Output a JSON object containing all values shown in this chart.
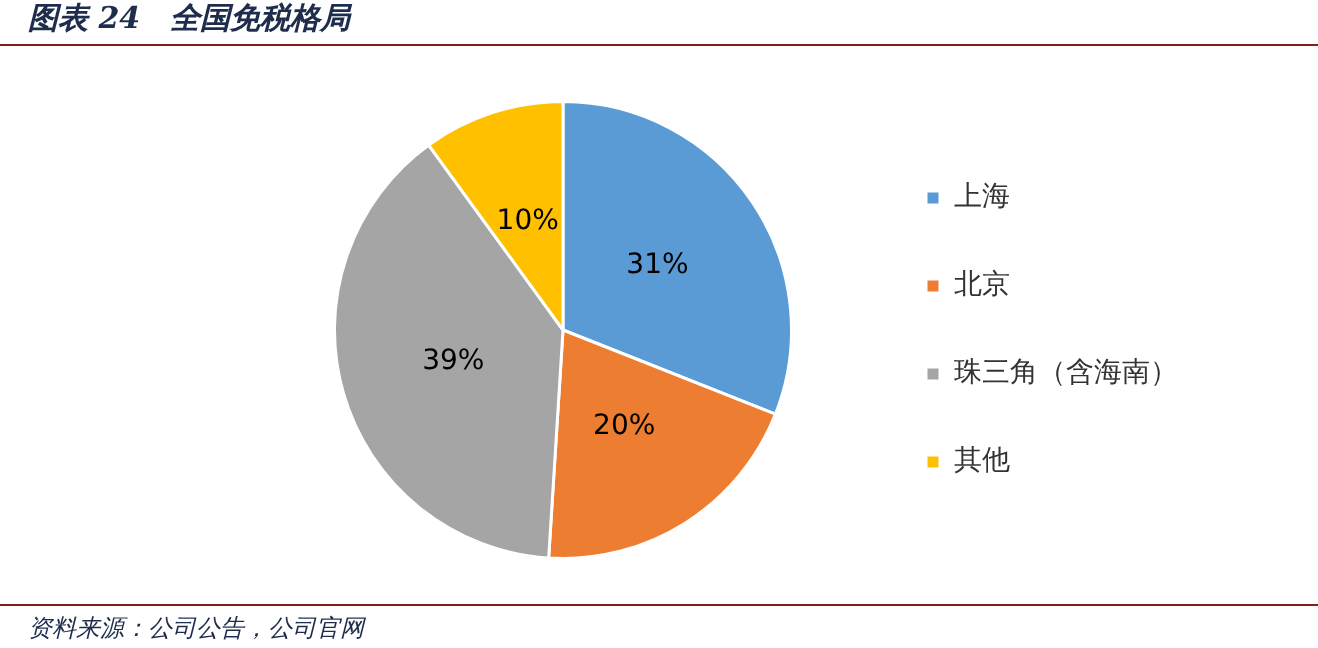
{
  "chart_data": {
    "type": "pie",
    "title": "图表 24　全国免税格局",
    "categories": [
      "上海",
      "北京",
      "珠三角（含海南）",
      "其他"
    ],
    "values": [
      31,
      20,
      39,
      10
    ],
    "value_labels": [
      "31%",
      "20%",
      "39%",
      "10%"
    ],
    "colors": [
      "#5b9bd5",
      "#ed7d31",
      "#a5a5a5",
      "#ffc000"
    ],
    "legend": "right",
    "annotations": [
      "资料来源：公司公告，公司官网"
    ]
  }
}
